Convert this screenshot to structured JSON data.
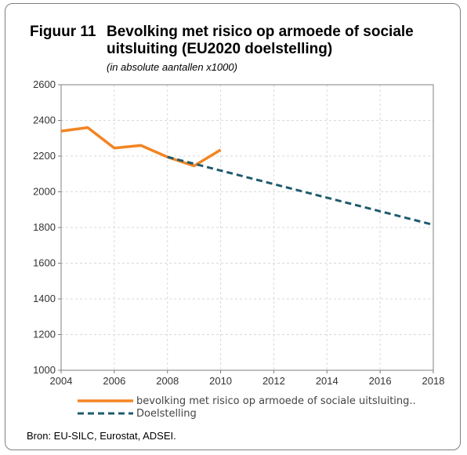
{
  "figure_number": "Figuur 11",
  "title_line1": "Bevolking met risico op armoede of sociale",
  "title_line2": "uitsluiting (EU2020 doelstelling)",
  "subtitle": "(in absolute aantallen x1000)",
  "source": "Bron: EU-SILC, Eurostat, ADSEI.",
  "colors": {
    "series1": "#f28522",
    "series2": "#1f5b6e",
    "grid": "#d9d9d9"
  },
  "chart_data": {
    "type": "line",
    "title": "Bevolking met risico op armoede of sociale uitsluiting (EU2020 doelstelling)",
    "subtitle": "(in absolute aantallen x1000)",
    "xlim": [
      2004,
      2018
    ],
    "ylim": [
      1000,
      2600
    ],
    "x_ticks": [
      "2004",
      "2006",
      "2008",
      "2010",
      "2012",
      "2014",
      "2016",
      "2018"
    ],
    "y_ticks": [
      "1000",
      "1200",
      "1400",
      "1600",
      "1800",
      "2000",
      "2200",
      "2400",
      "2600"
    ],
    "grid": true,
    "legend": "bottom",
    "series": [
      {
        "name": "bevolking met risico op armoede of sociale uitsluiting..",
        "style": "solid",
        "color": "#f28522",
        "x": [
          2004,
          2005,
          2006,
          2007,
          2008,
          2009,
          2010
        ],
        "y": [
          2340,
          2360,
          2245,
          2260,
          2195,
          2145,
          2235
        ]
      },
      {
        "name": "Doelstelling",
        "style": "dashed",
        "color": "#1f5b6e",
        "x": [
          2008,
          2018
        ],
        "y": [
          2195,
          1815
        ]
      }
    ]
  }
}
